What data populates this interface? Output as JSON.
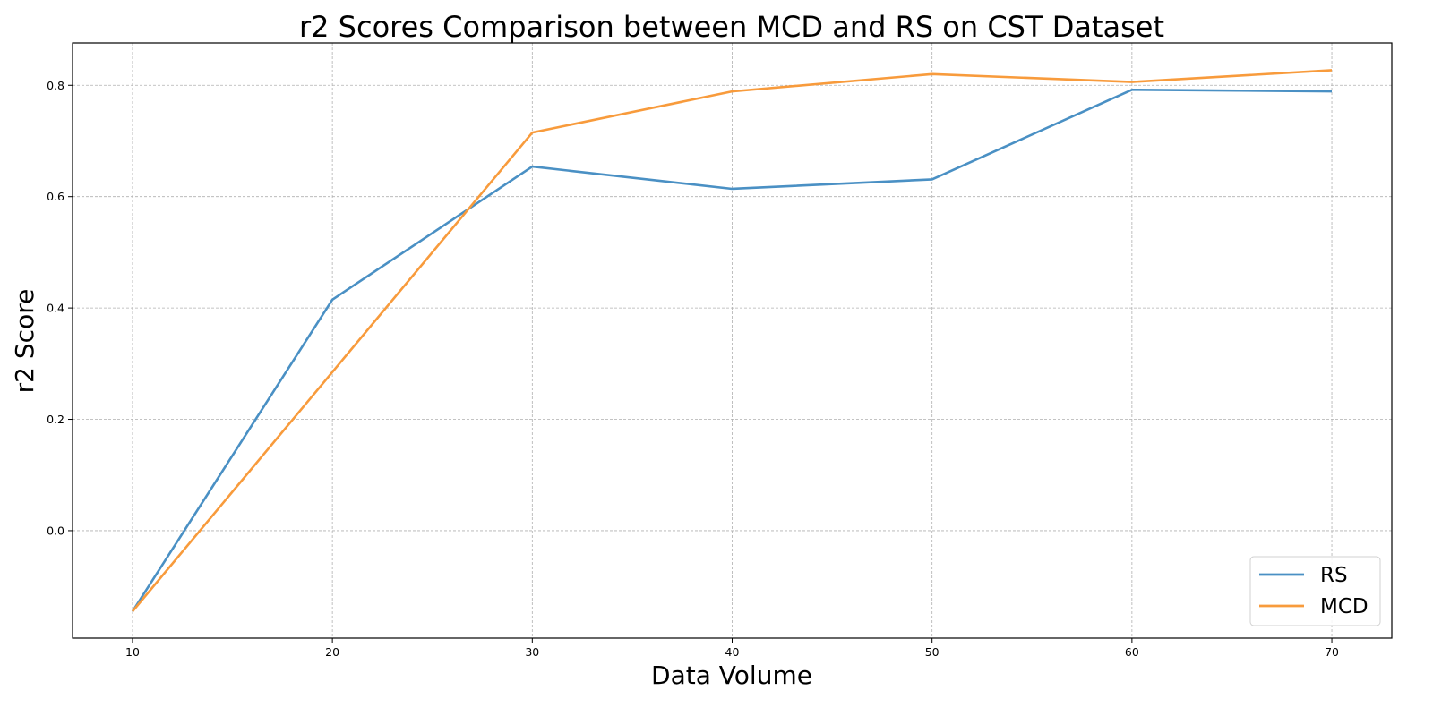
{
  "chart_data": {
    "type": "line",
    "title": "r2 Scores Comparison between MCD and RS on CST Dataset",
    "xlabel": "Data Volume",
    "ylabel": "r2 Score",
    "x": [
      10,
      20,
      30,
      40,
      50,
      60,
      70
    ],
    "xticks": [
      "10",
      "20",
      "30",
      "40",
      "50",
      "60",
      "70"
    ],
    "yticks": [
      "0.0",
      "0.2",
      "0.4",
      "0.6",
      "0.8"
    ],
    "xlim": [
      7,
      73
    ],
    "ylim": [
      -0.193,
      0.876
    ],
    "grid": true,
    "legend_position": "lower-right",
    "series": [
      {
        "name": "RS",
        "color": "#4a90c4",
        "values": [
          -0.145,
          0.415,
          0.654,
          0.614,
          0.631,
          0.792,
          0.789
        ]
      },
      {
        "name": "MCD",
        "color": "#f89b3c",
        "values": [
          -0.145,
          0.285,
          0.715,
          0.789,
          0.82,
          0.806,
          0.827
        ]
      }
    ]
  }
}
